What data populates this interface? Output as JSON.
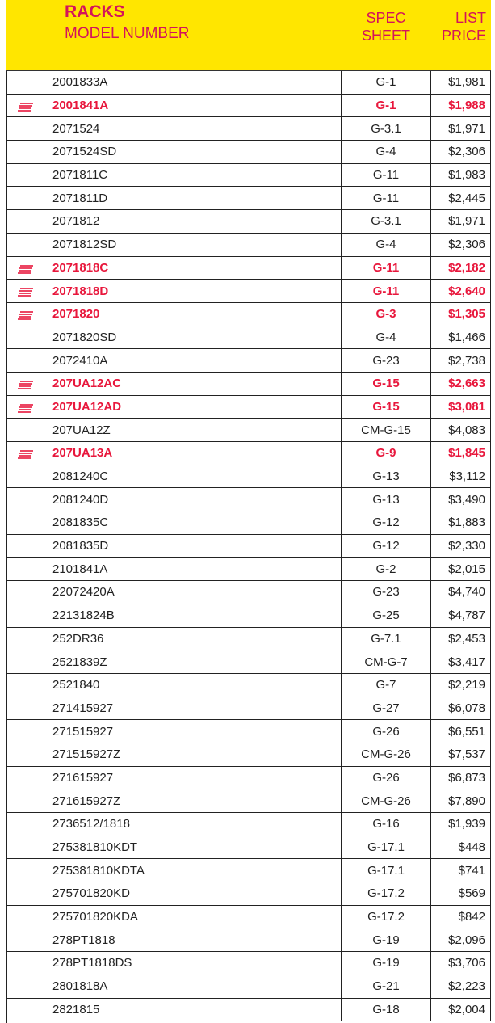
{
  "header": {
    "title": "RACKS",
    "model_label": "MODEL NUMBER",
    "spec_label": [
      "SPEC",
      "SHEET"
    ],
    "price_label": [
      "LIST",
      "PRICE"
    ]
  },
  "table": {
    "rows": [
      {
        "model": "2001833A",
        "spec": "G-1",
        "price": "$1,981",
        "highlight": false
      },
      {
        "model": "2001841A",
        "spec": "G-1",
        "price": "$1,988",
        "highlight": true
      },
      {
        "model": "2071524",
        "spec": "G-3.1",
        "price": "$1,971",
        "highlight": false
      },
      {
        "model": "2071524SD",
        "spec": "G-4",
        "price": "$2,306",
        "highlight": false
      },
      {
        "model": "2071811C",
        "spec": "G-11",
        "price": "$1,983",
        "highlight": false
      },
      {
        "model": "2071811D",
        "spec": "G-11",
        "price": "$2,445",
        "highlight": false
      },
      {
        "model": "2071812",
        "spec": "G-3.1",
        "price": "$1,971",
        "highlight": false
      },
      {
        "model": "2071812SD",
        "spec": "G-4",
        "price": "$2,306",
        "highlight": false
      },
      {
        "model": "2071818C",
        "spec": "G-11",
        "price": "$2,182",
        "highlight": true
      },
      {
        "model": "2071818D",
        "spec": "G-11",
        "price": "$2,640",
        "highlight": true
      },
      {
        "model": "2071820",
        "spec": "G-3",
        "price": "$1,305",
        "highlight": true
      },
      {
        "model": "2071820SD",
        "spec": "G-4",
        "price": "$1,466",
        "highlight": false
      },
      {
        "model": "2072410A",
        "spec": "G-23",
        "price": "$2,738",
        "highlight": false
      },
      {
        "model": "207UA12AC",
        "spec": "G-15",
        "price": "$2,663",
        "highlight": true
      },
      {
        "model": "207UA12AD",
        "spec": "G-15",
        "price": "$3,081",
        "highlight": true
      },
      {
        "model": "207UA12Z",
        "spec": "CM-G-15",
        "price": "$4,083",
        "highlight": false
      },
      {
        "model": "207UA13A",
        "spec": "G-9",
        "price": "$1,845",
        "highlight": true
      },
      {
        "model": "2081240C",
        "spec": "G-13",
        "price": "$3,112",
        "highlight": false
      },
      {
        "model": "2081240D",
        "spec": "G-13",
        "price": "$3,490",
        "highlight": false
      },
      {
        "model": "2081835C",
        "spec": "G-12",
        "price": "$1,883",
        "highlight": false
      },
      {
        "model": "2081835D",
        "spec": "G-12",
        "price": "$2,330",
        "highlight": false
      },
      {
        "model": "2101841A",
        "spec": "G-2",
        "price": "$2,015",
        "highlight": false
      },
      {
        "model": "22072420A",
        "spec": "G-23",
        "price": "$4,740",
        "highlight": false
      },
      {
        "model": "22131824B",
        "spec": "G-25",
        "price": "$4,787",
        "highlight": false
      },
      {
        "model": "252DR36",
        "spec": "G-7.1",
        "price": "$2,453",
        "highlight": false
      },
      {
        "model": "2521839Z",
        "spec": "CM-G-7",
        "price": "$3,417",
        "highlight": false
      },
      {
        "model": "2521840",
        "spec": "G-7",
        "price": "$2,219",
        "highlight": false
      },
      {
        "model": "271415927",
        "spec": "G-27",
        "price": "$6,078",
        "highlight": false
      },
      {
        "model": "271515927",
        "spec": "G-26",
        "price": "$6,551",
        "highlight": false
      },
      {
        "model": "271515927Z",
        "spec": "CM-G-26",
        "price": "$7,537",
        "highlight": false
      },
      {
        "model": "271615927",
        "spec": "G-26",
        "price": "$6,873",
        "highlight": false
      },
      {
        "model": "271615927Z",
        "spec": "CM-G-26",
        "price": "$7,890",
        "highlight": false
      },
      {
        "model": "2736512/1818",
        "spec": "G-16",
        "price": "$1,939",
        "highlight": false
      },
      {
        "model": "275381810KDT",
        "spec": "G-17.1",
        "price": "$448",
        "highlight": false
      },
      {
        "model": "275381810KDTA",
        "spec": "G-17.1",
        "price": "$741",
        "highlight": false
      },
      {
        "model": "275701820KD",
        "spec": "G-17.2",
        "price": "$569",
        "highlight": false
      },
      {
        "model": "275701820KDA",
        "spec": "G-17.2",
        "price": "$842",
        "highlight": false
      },
      {
        "model": "278PT1818",
        "spec": "G-19",
        "price": "$2,096",
        "highlight": false
      },
      {
        "model": "278PT1818DS",
        "spec": "G-19",
        "price": "$3,706",
        "highlight": false
      },
      {
        "model": "2801818A",
        "spec": "G-21",
        "price": "$2,223",
        "highlight": false
      },
      {
        "model": "2821815",
        "spec": "G-18",
        "price": "$2,004",
        "highlight": false
      }
    ]
  }
}
